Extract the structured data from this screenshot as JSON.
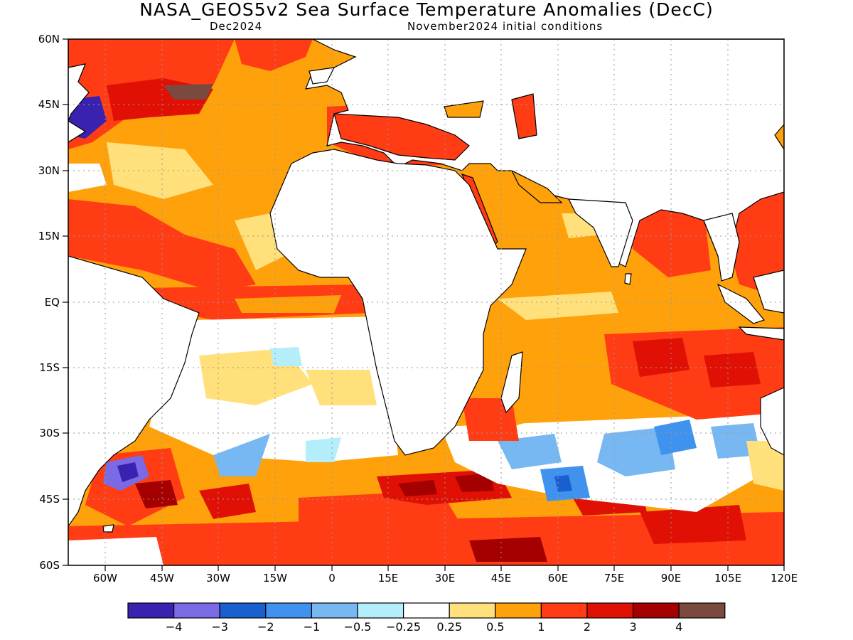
{
  "title": "NASA_GEOS5v2 Sea Surface Temperature Anomalies (DecC)",
  "subtitle_left": "Dec2024",
  "subtitle_right": "November2024 initial conditions",
  "lat_labels": [
    "60N",
    "45N",
    "30N",
    "15N",
    "EQ",
    "15S",
    "30S",
    "45S",
    "60S"
  ],
  "lon_labels": [
    "60W",
    "45W",
    "30W",
    "15W",
    "0",
    "15E",
    "30E",
    "45E",
    "60E",
    "75E",
    "90E",
    "105E",
    "120E"
  ],
  "colorbar": {
    "colors": [
      "#3a22b0",
      "#7a6ae6",
      "#1a5fd0",
      "#3f93ee",
      "#77b8f2",
      "#b3eefa",
      "#ffffff",
      "#ffe07a",
      "#ffa10a",
      "#ff3c14",
      "#e01005",
      "#a40000",
      "#7a4a3e"
    ],
    "labels": [
      "−4",
      "−3",
      "−2",
      "−1",
      "−0.5",
      "−0.25",
      "0.25",
      "0.5",
      "1",
      "2",
      "3",
      "4"
    ]
  },
  "map": {
    "lon_range": [
      -70,
      120
    ],
    "lat_range": [
      -60,
      60
    ],
    "land_color": "#ffffff",
    "coast_color": "#000000",
    "grid_color": "#9a9a9a"
  }
}
